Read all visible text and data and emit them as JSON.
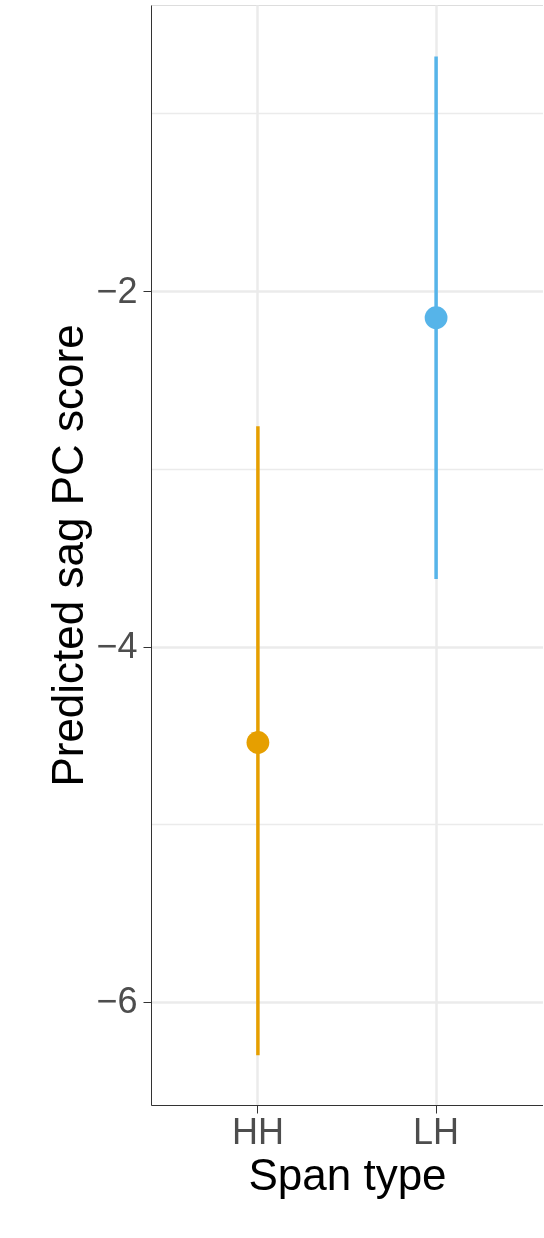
{
  "chart_data": {
    "type": "scatter",
    "xlabel": "Span type",
    "ylabel": "Predicted sag PC score",
    "categories": [
      "HH",
      "LH"
    ],
    "values": [
      -4.54,
      -2.15
    ],
    "colors": [
      "#e69f00",
      "#56b4e9"
    ],
    "errors": [
      [
        -6.3,
        -2.76
      ],
      [
        -3.62,
        -0.68
      ]
    ],
    "ylim": [
      -6.58,
      -0.39
    ],
    "yticks": [
      {
        "value": -1,
        "label": null
      },
      -2,
      {
        "value": -3,
        "label": null
      },
      -4,
      {
        "value": -5,
        "label": null
      },
      -6
    ],
    "grid": true,
    "marker": "circle",
    "legend": false
  }
}
